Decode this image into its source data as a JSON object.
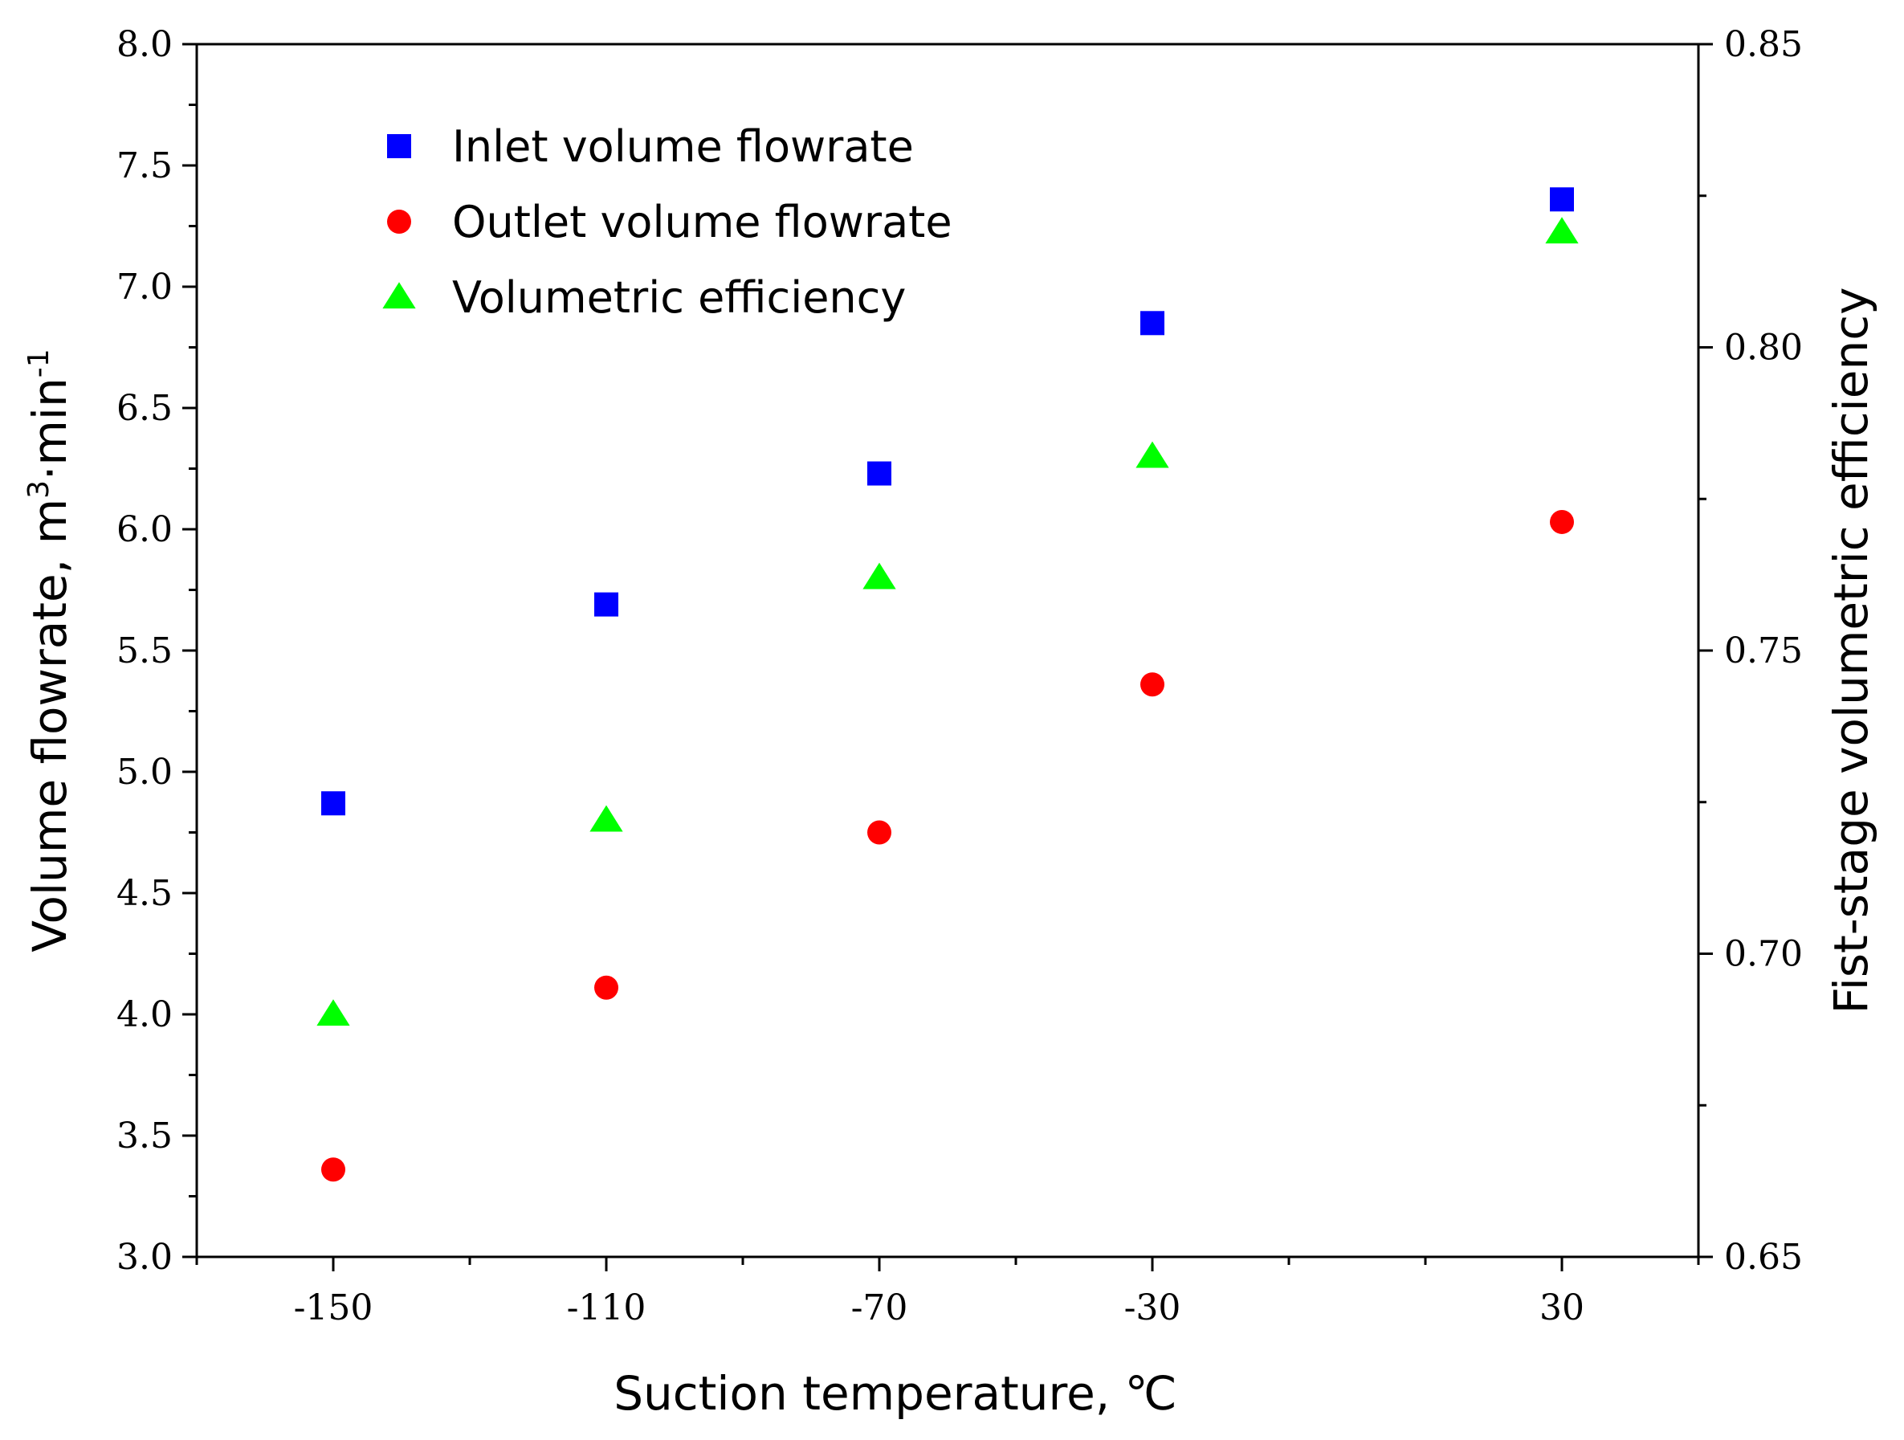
{
  "chart_data": {
    "type": "scatter",
    "x": [
      -150,
      -110,
      -70,
      -30,
      30
    ],
    "xticks": [
      -150,
      -110,
      -70,
      -30,
      30
    ],
    "xlim": [
      -170,
      50
    ],
    "xlabel": "Suction temperature, ℃",
    "left_axis": {
      "label_prefix": "Volume flowrate, m",
      "label_sup1": "3",
      "label_mid": "·min",
      "label_sup2": "-1",
      "ylim": [
        3.0,
        8.0
      ],
      "ticks": [
        "3.0",
        "3.5",
        "4.0",
        "4.5",
        "5.0",
        "5.5",
        "6.0",
        "6.5",
        "7.0",
        "7.5",
        "8.0"
      ]
    },
    "right_axis": {
      "label": "Fist-stage volumetric efficiency",
      "ylim": [
        0.65,
        0.85
      ],
      "ticks": [
        "0.65",
        "0.70",
        "0.75",
        "0.80",
        "0.85"
      ]
    },
    "series": [
      {
        "name": "Inlet  volume  flowrate",
        "marker": "square",
        "color": "#0000ff",
        "axis": "left",
        "values": [
          4.87,
          5.69,
          6.23,
          6.85,
          7.36
        ]
      },
      {
        "name": "Outlet  volume  flowrate",
        "marker": "circle",
        "color": "#ff0000",
        "axis": "left",
        "values": [
          3.36,
          4.11,
          4.75,
          5.36,
          6.03
        ]
      },
      {
        "name": "Volumetric  efficiency",
        "marker": "triangle",
        "color": "#00ff00",
        "axis": "right",
        "values": [
          0.69,
          0.722,
          0.762,
          0.782,
          0.819
        ]
      }
    ],
    "legend": "top-left"
  }
}
